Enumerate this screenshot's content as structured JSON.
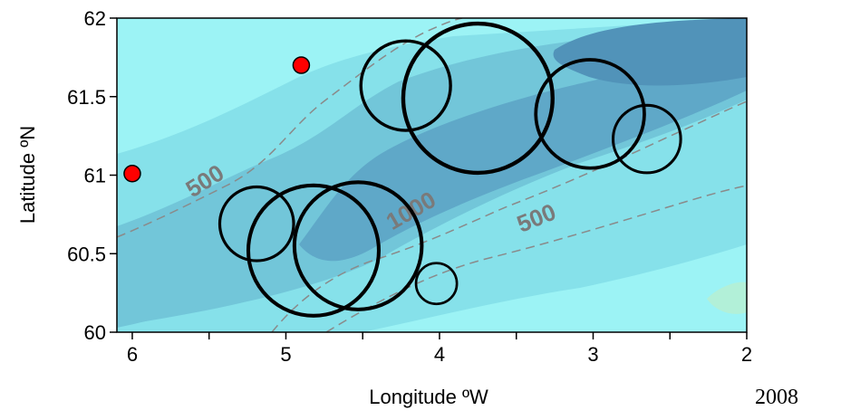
{
  "chart_data": {
    "type": "scatter",
    "title": "",
    "xlabel": "Longitude ºW",
    "ylabel": "Latitude ºN",
    "xlim": [
      6.1,
      2.0
    ],
    "ylim": [
      60.0,
      62.0
    ],
    "x_reversed": true,
    "x_ticks": [
      "6",
      "5",
      "4",
      "3",
      "2"
    ],
    "y_ticks": [
      "60",
      "60.5",
      "61",
      "61.5",
      "62"
    ],
    "x_tick_values": [
      6,
      5,
      4,
      3,
      2
    ],
    "y_tick_values": [
      60,
      60.5,
      61,
      61.5,
      62
    ],
    "x_minor_ticks": [
      5.5,
      4.5,
      3.5,
      2.5
    ],
    "contour_labels": [
      {
        "text": "500",
        "lon": 5.5,
        "lat": 60.92,
        "angle": -32
      },
      {
        "text": "1000",
        "lon": 4.16,
        "lat": 60.73,
        "angle": -30
      },
      {
        "text": "500",
        "lon": 3.35,
        "lat": 60.68,
        "angle": -22
      }
    ],
    "circles": [
      {
        "lon": 4.22,
        "lat": 61.57,
        "size": 0.57
      },
      {
        "lon": 3.75,
        "lat": 61.49,
        "size": 0.95
      },
      {
        "lon": 3.02,
        "lat": 61.39,
        "size": 0.69
      },
      {
        "lon": 2.65,
        "lat": 61.23,
        "size": 0.43
      },
      {
        "lon": 5.19,
        "lat": 60.69,
        "size": 0.47
      },
      {
        "lon": 4.82,
        "lat": 60.52,
        "size": 0.83
      },
      {
        "lon": 4.53,
        "lat": 60.55,
        "size": 0.81
      },
      {
        "lon": 4.02,
        "lat": 60.31,
        "size": 0.26
      }
    ],
    "red_points": [
      {
        "lon": 6.0,
        "lat": 61.01
      },
      {
        "lon": 4.9,
        "lat": 61.7
      }
    ],
    "colors": {
      "shallow": "#9cf3f5",
      "shelf": "#86e1ea",
      "mid": "#72c6d9",
      "deep": "#5fa8c8",
      "deepest": "#5193b9",
      "green_patch": "#b2f0d8",
      "contour": "#8a8a8a",
      "circle_stroke": "#000000",
      "red_point": "#ff0000"
    }
  },
  "year_label": "2008"
}
